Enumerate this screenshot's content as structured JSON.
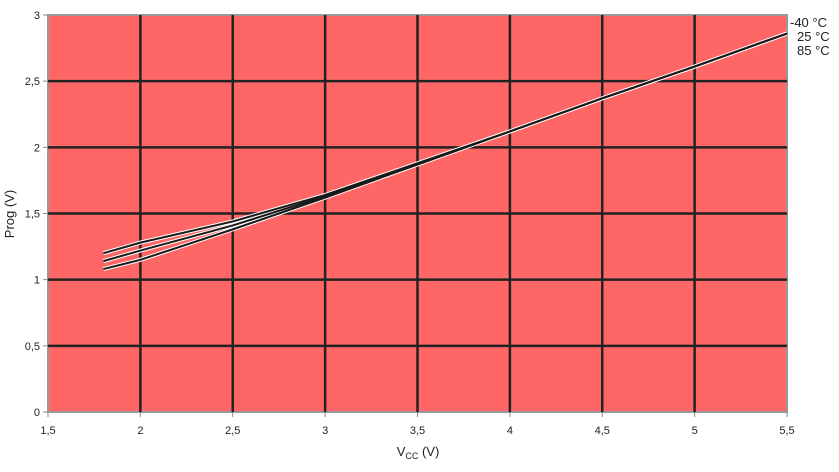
{
  "chart_data": {
    "type": "line",
    "title": "",
    "xlabel_main": "V",
    "xlabel_sub": "CC",
    "xlabel_unit": " (V)",
    "ylabel": "Prog (V)",
    "xlim": [
      1.5,
      5.5
    ],
    "ylim": [
      0,
      3
    ],
    "grid": true,
    "x_ticks": [
      "1,5",
      "2",
      "2,5",
      "3",
      "3,5",
      "4",
      "4,5",
      "5",
      "5,5"
    ],
    "y_ticks": [
      "0",
      "0,5",
      "1",
      "1,5",
      "2",
      "2,5",
      "3"
    ],
    "x_tick_values": [
      1.5,
      2,
      2.5,
      3,
      3.5,
      4,
      4.5,
      5,
      5.5
    ],
    "y_tick_values": [
      0,
      0.5,
      1,
      1.5,
      2,
      2.5,
      3
    ],
    "x": [
      1.8,
      2,
      2.5,
      3,
      3.5,
      4,
      4.5,
      5,
      5.5
    ],
    "series": [
      {
        "name": "-40 °C",
        "values": [
          1.2,
          1.28,
          1.44,
          1.64,
          1.88,
          2.12,
          2.37,
          2.61,
          2.86
        ]
      },
      {
        "name": "25 °C",
        "values": [
          1.14,
          1.22,
          1.41,
          1.63,
          1.87,
          2.12,
          2.37,
          2.61,
          2.86
        ]
      },
      {
        "name": "85 °C",
        "values": [
          1.08,
          1.15,
          1.38,
          1.62,
          1.87,
          2.12,
          2.37,
          2.61,
          2.86
        ]
      }
    ],
    "legend_placement": "right",
    "colors": {
      "plot_bg": "#ff6666",
      "grid": "#222222",
      "line": "#1a1a1a",
      "border": "#999999"
    }
  }
}
